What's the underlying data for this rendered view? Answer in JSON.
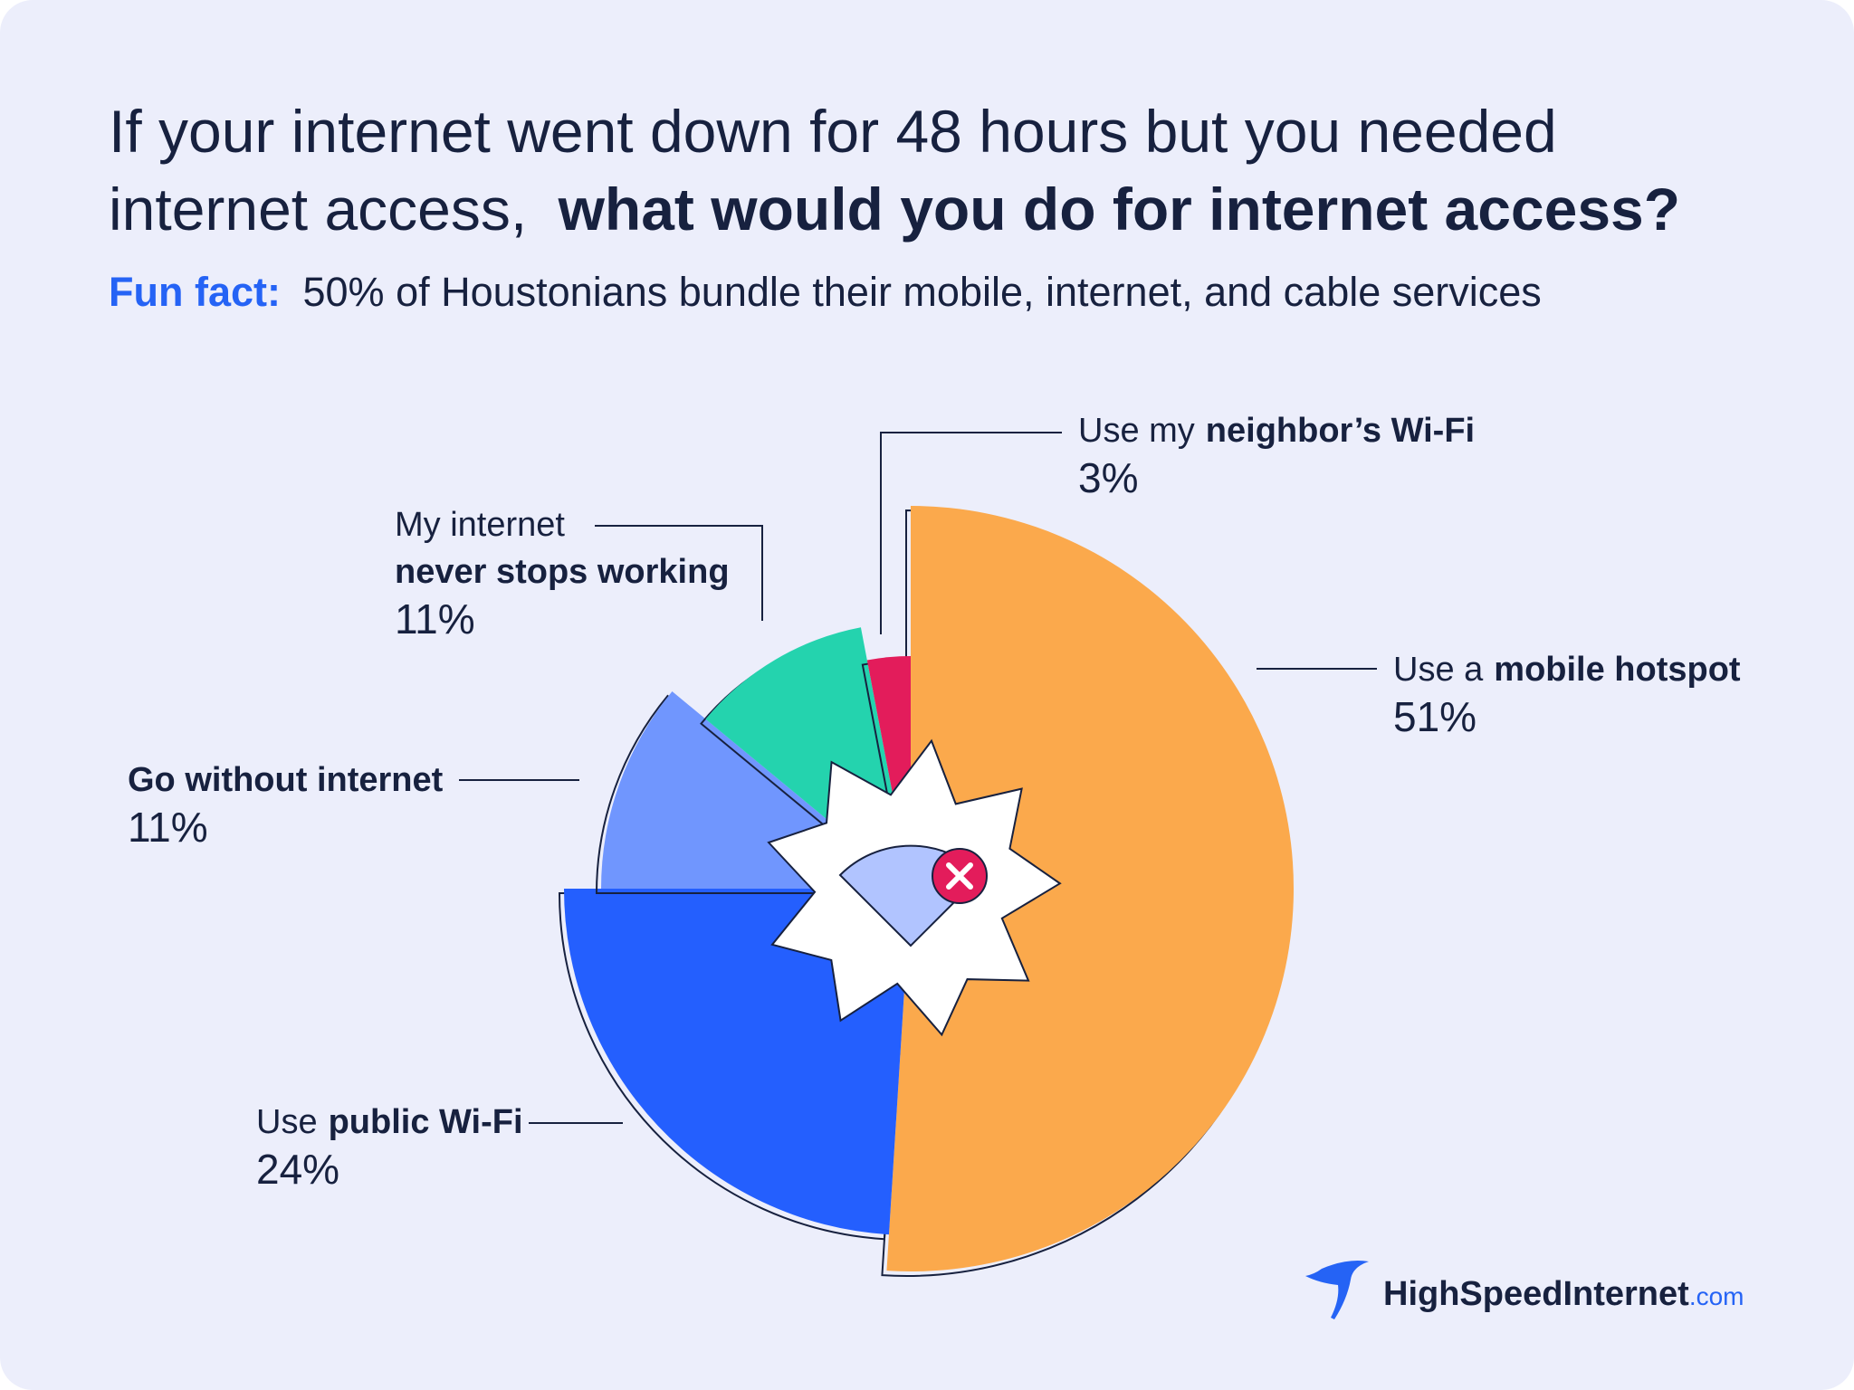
{
  "chart_data": {
    "type": "pie",
    "title": {
      "lines": [
        "If your internet went down for 48 hours but you needed",
        "internet access,"
      ],
      "emphasis": "what would you do for internet access?"
    },
    "subtitle": {
      "lead": "Fun fact:",
      "text": "50% of Houstonians bundle their mobile, internet, and cable services"
    },
    "categories": [
      {
        "plain": "Use a",
        "bold": "mobile hotspot"
      },
      {
        "plain": "Use",
        "bold": "public Wi-Fi"
      },
      {
        "bold": "Go without internet"
      },
      {
        "plain": "My internet",
        "bold": "never stops working"
      },
      {
        "plain": "Use my",
        "bold": "neighbor’s Wi-Fi"
      }
    ],
    "values": [
      51,
      24,
      11,
      11,
      3
    ],
    "value_labels": [
      "51%",
      "24%",
      "11%",
      "11%",
      "3%"
    ],
    "colors": [
      "#fba94c",
      "#245ffe",
      "#7096fe",
      "#24d3ae",
      "#e31c5b"
    ],
    "brand": {
      "name": "HighSpeedInternet",
      "suffix": ".com"
    }
  }
}
